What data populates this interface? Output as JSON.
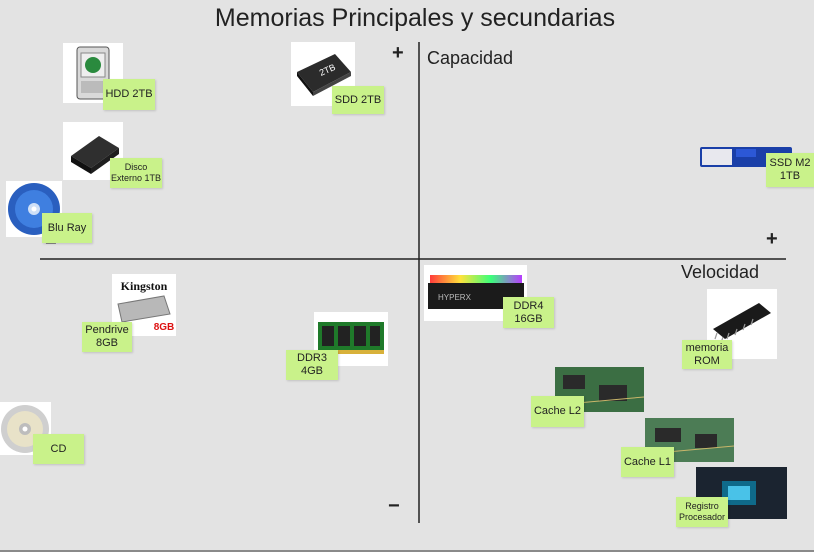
{
  "title": "Memorias Principales y secundarias",
  "axes": {
    "y_label": "Capacidad",
    "x_label": "Velocidad",
    "y_plus": "+",
    "y_minus": "−",
    "x_plus": "+",
    "x_minus": "−"
  },
  "items": [
    {
      "label": "HDD 2TB",
      "icon": "hdd-icon"
    },
    {
      "label": "SDD 2TB",
      "icon": "ssd-icon"
    },
    {
      "label": "Disco Externo 1TB",
      "icon": "external-disk-icon"
    },
    {
      "label": "SSD M2 1TB",
      "icon": "ssd-m2-icon"
    },
    {
      "label": "Blu Ray",
      "icon": "bluray-icon"
    },
    {
      "label": "Pendrive 8GB",
      "icon": "pendrive-icon",
      "logo": "Kingston",
      "logo_capacity": "8GB"
    },
    {
      "label": "DDR3 4GB",
      "icon": "ddr3-icon"
    },
    {
      "label": "DDR4 16GB",
      "icon": "ddr4-icon",
      "logo": "HYPERX"
    },
    {
      "label": "memoria ROM",
      "icon": "rom-chip-icon"
    },
    {
      "label": "Cache L2",
      "icon": "cache-l2-icon"
    },
    {
      "label": "Cache L1",
      "icon": "cache-l1-icon"
    },
    {
      "label": "Registro Procesador",
      "icon": "cpu-icon"
    },
    {
      "label": "CD",
      "icon": "cd-icon"
    }
  ],
  "colors": {
    "background": "#e3e3e3",
    "sticky_note": "#c9f28a",
    "axis": "#222222"
  }
}
